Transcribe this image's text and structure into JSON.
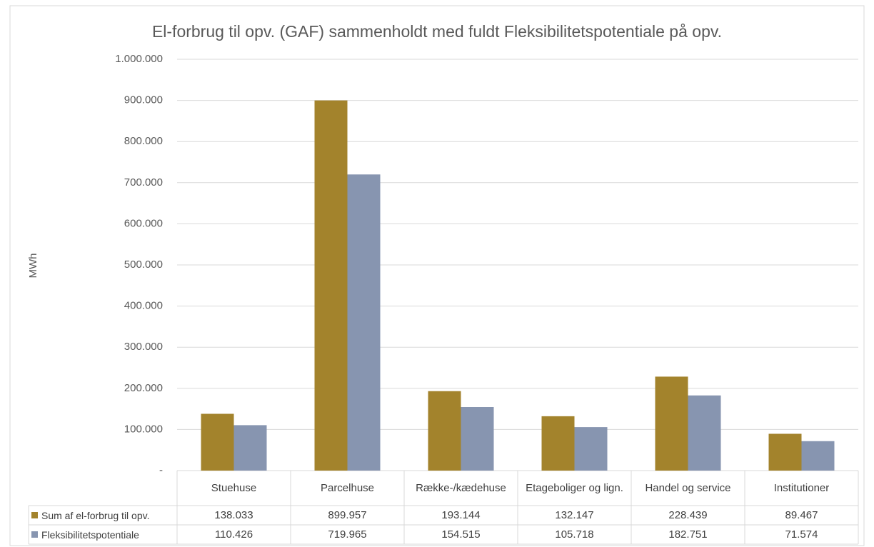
{
  "chart_data": {
    "type": "bar",
    "title": "El-forbrug til opv. (GAF) sammenholdt med fuldt Fleksibilitetspotentiale  på opv.",
    "y_label": "MWh",
    "categories": [
      "Stuehuse",
      "Parcelhuse",
      "Række-/kædehuse",
      "Etageboliger og lign.",
      "Handel og service",
      "Institutioner"
    ],
    "series": [
      {
        "name": "Sum af el-forbrug til opv.",
        "color": "#a3832c",
        "values": [
          138033,
          899957,
          193144,
          132147,
          228439,
          89467
        ],
        "value_labels": [
          "138.033",
          "899.957",
          "193.144",
          "132.147",
          "228.439",
          "89.467"
        ]
      },
      {
        "name": "Fleksibilitetspotentiale",
        "color": "#8795b0",
        "values": [
          110426,
          719965,
          154515,
          105718,
          182751,
          71574
        ],
        "value_labels": [
          "110.426",
          "719.965",
          "154.515",
          "105.718",
          "182.751",
          "71.574"
        ]
      }
    ],
    "ylim": [
      0,
      1000000
    ],
    "yticks": [
      {
        "value": 0,
        "label": "-"
      },
      {
        "value": 100000,
        "label": "100.000"
      },
      {
        "value": 200000,
        "label": "200.000"
      },
      {
        "value": 300000,
        "label": "300.000"
      },
      {
        "value": 400000,
        "label": "400.000"
      },
      {
        "value": 500000,
        "label": "500.000"
      },
      {
        "value": 600000,
        "label": "600.000"
      },
      {
        "value": 700000,
        "label": "700.000"
      },
      {
        "value": 800000,
        "label": "800.000"
      },
      {
        "value": 900000,
        "label": "900.000"
      },
      {
        "value": 1000000,
        "label": "1.000.000"
      }
    ],
    "grid": true
  }
}
